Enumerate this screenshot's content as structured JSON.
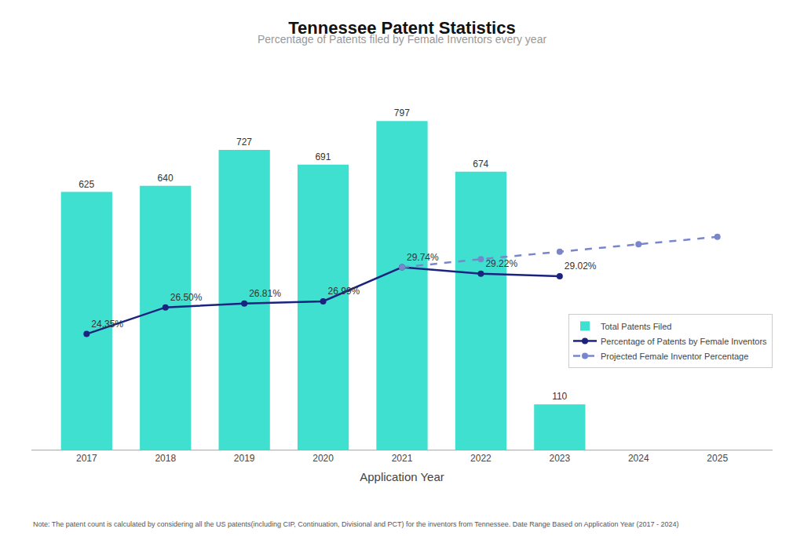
{
  "chart_data": {
    "type": "bar",
    "title": "Tennessee Patent Statistics",
    "subtitle": "Percentage of Patents filed by Female Inventors every year",
    "xlabel": "Application Year",
    "note": "Note: The patent count is calculated by considering all the US patents(including CIP, Continuation, Divisional and PCT) for the inventors from Tennessee. Date Range Based on Application Year (2017 - 2024)",
    "xlim": [
      2016.3,
      2025.7
    ],
    "xticks": [
      2017,
      2018,
      2019,
      2020,
      2021,
      2022,
      2023,
      2024,
      2025
    ],
    "ylim": [
      0,
      900
    ],
    "y2lim": [
      15,
      45
    ],
    "tick_labels": "x",
    "grid": false,
    "legend": "lower right",
    "series": [
      {
        "name": "Total Patents Filed",
        "type": "bar",
        "color": "#40E0D0",
        "x": [
          2017,
          2018,
          2019,
          2020,
          2021,
          2022,
          2023
        ],
        "values": [
          625,
          640,
          727,
          691,
          797,
          674,
          110
        ],
        "data_labels": true
      },
      {
        "name": "Percentage of Patents by Female Inventors",
        "type": "line",
        "axis": "y2",
        "color": "#1a237e",
        "marker": "circle",
        "line_style": "solid",
        "x": [
          2017,
          2018,
          2019,
          2020,
          2021,
          2022,
          2023
        ],
        "values": [
          24.35,
          26.5,
          26.81,
          26.99,
          29.74,
          29.22,
          29.02
        ],
        "value_labels": [
          "24.35%",
          "26.50%",
          "26.81%",
          "26.99%",
          "29.74%",
          "29.22%",
          "29.02%"
        ],
        "data_labels": true
      },
      {
        "name": "Projected Female Inventor Percentage",
        "type": "line",
        "axis": "y2",
        "color": "#7986cb",
        "marker": "circle",
        "line_style": "dashed",
        "x": [
          2021,
          2022,
          2023,
          2024,
          2025
        ],
        "values": [
          29.74,
          30.4,
          31.0,
          31.6,
          32.2
        ],
        "data_labels": false
      }
    ]
  }
}
